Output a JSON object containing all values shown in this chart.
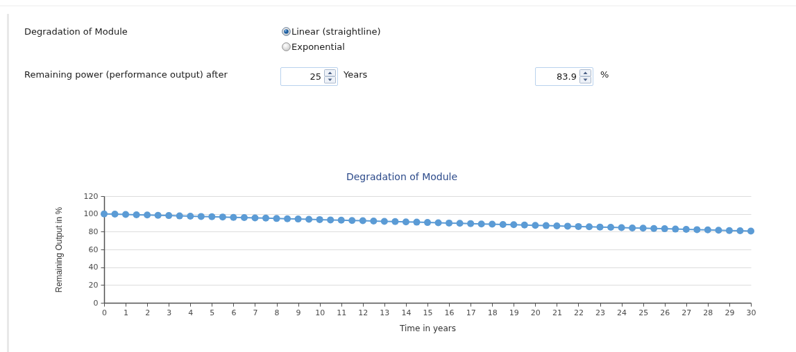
{
  "chart_data": [
    {
      "type": "other",
      "annotations": [
        "Degradation of Module",
        "Linear (straightline)",
        "Exponential",
        "Remaining power (performance output) after",
        "25",
        "Years",
        "83.9",
        "%"
      ]
    },
    {
      "type": "line",
      "title": "Degradation of Module",
      "xlabel": "Time in years",
      "ylabel": "Remaining Output in %",
      "x": [
        0,
        0.5,
        1,
        1.5,
        2,
        2.5,
        3,
        3.5,
        4,
        4.5,
        5,
        5.5,
        6,
        6.5,
        7,
        7.5,
        8,
        8.5,
        9,
        9.5,
        10,
        10.5,
        11,
        11.5,
        12,
        12.5,
        13,
        13.5,
        14,
        14.5,
        15,
        15.5,
        16,
        16.5,
        17,
        17.5,
        18,
        18.5,
        19,
        19.5,
        20,
        20.5,
        21,
        21.5,
        22,
        22.5,
        23,
        23.5,
        24,
        24.5,
        25,
        25.5,
        26,
        26.5,
        27,
        27.5,
        28,
        28.5,
        29,
        29.5,
        30
      ],
      "values": [
        100,
        99.7,
        99.4,
        99,
        98.7,
        98.4,
        98.1,
        97.7,
        97.4,
        97.1,
        96.8,
        96.5,
        96.1,
        95.8,
        95.5,
        95.2,
        94.8,
        94.5,
        94.2,
        93.9,
        93.6,
        93.2,
        92.9,
        92.6,
        92.3,
        92,
        91.6,
        91.3,
        91,
        90.7,
        90.3,
        90,
        89.7,
        89.4,
        89.1,
        88.7,
        88.4,
        88.1,
        87.8,
        87.4,
        87.1,
        86.8,
        86.5,
        86.2,
        85.8,
        85.5,
        85.2,
        84.9,
        84.5,
        84.2,
        83.9,
        83.6,
        83.3,
        82.9,
        82.6,
        82.3,
        82,
        81.6,
        81.3,
        81,
        80.7
      ],
      "color": "#5b9bd5",
      "xlim": [
        0,
        30
      ],
      "xticks": [
        0,
        1,
        2,
        3,
        4,
        5,
        6,
        7,
        8,
        9,
        10,
        11,
        12,
        13,
        14,
        15,
        16,
        17,
        18,
        19,
        20,
        21,
        22,
        23,
        24,
        25,
        26,
        27,
        28,
        29,
        30
      ],
      "ylim": [
        0,
        120
      ],
      "yticks": [
        0,
        20,
        40,
        60,
        80,
        100,
        120
      ],
      "grid": "y",
      "marker": "circle",
      "line_style": "solid"
    }
  ]
}
